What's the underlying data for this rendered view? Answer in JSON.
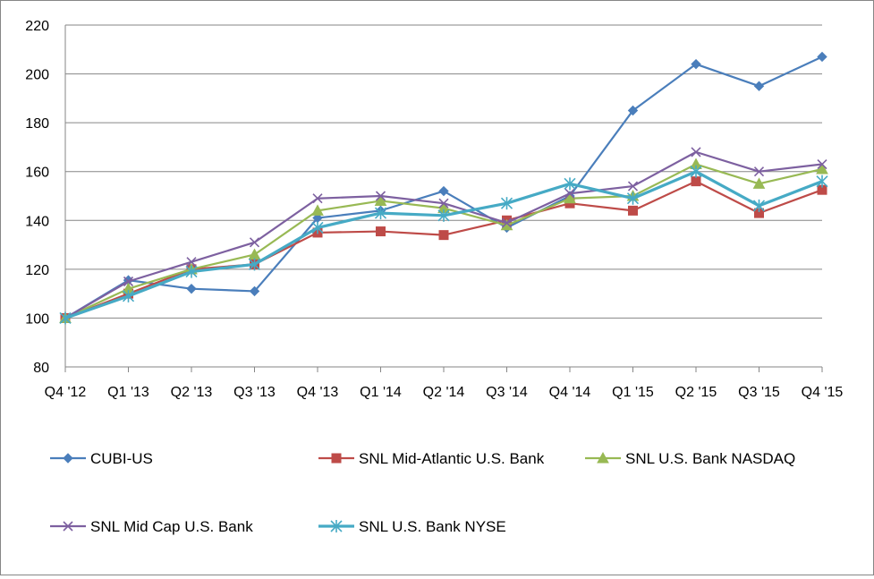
{
  "chart_data": {
    "type": "line",
    "title": "",
    "xlabel": "",
    "ylabel": "",
    "ylim": [
      80,
      220
    ],
    "yticks": [
      "80",
      "100",
      "120",
      "140",
      "160",
      "180",
      "200",
      "220"
    ],
    "categories": [
      "Q4 '12",
      "Q1 '13",
      "Q2 '13",
      "Q3 '13",
      "Q4 '13",
      "Q1 '14",
      "Q2 '14",
      "Q3 '14",
      "Q4 '14",
      "Q1 '15",
      "Q2 '15",
      "Q3 '15",
      "Q4 '15"
    ],
    "grid": "horizontal",
    "legend_position": "bottom",
    "series": [
      {
        "name": "CUBI-US",
        "color": "#4a7ebb",
        "marker": "diamond",
        "values": [
          100,
          115.5,
          112,
          111,
          141,
          144,
          152,
          137,
          150,
          185,
          204,
          195,
          207
        ]
      },
      {
        "name": "SNL Mid-Atlantic U.S. Bank",
        "color": "#be4b48",
        "marker": "square",
        "values": [
          100,
          110,
          120,
          122,
          135,
          135.5,
          134,
          140,
          147,
          144,
          156,
          143,
          152.5
        ]
      },
      {
        "name": "SNL U.S. Bank NASDAQ",
        "color": "#98b954",
        "marker": "triangle",
        "values": [
          100,
          112,
          120,
          126,
          144,
          148,
          145,
          138,
          149,
          150,
          163,
          155,
          161
        ]
      },
      {
        "name": "SNL Mid Cap U.S. Bank",
        "color": "#7d60a0",
        "marker": "x",
        "values": [
          100,
          115,
          123,
          131,
          149,
          150,
          147,
          139,
          151,
          154,
          168,
          160,
          163
        ]
      },
      {
        "name": "SNL U.S. Bank NYSE",
        "color": "#46aac5",
        "marker": "star",
        "values": [
          100,
          109,
          119,
          122,
          137,
          143,
          142,
          147,
          155,
          149,
          160,
          146,
          156
        ]
      }
    ]
  }
}
